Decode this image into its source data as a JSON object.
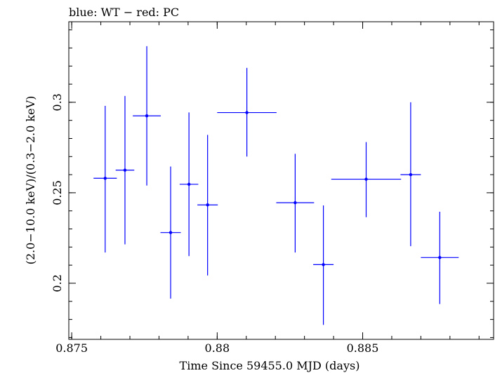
{
  "chart_data": {
    "type": "scatter",
    "title": "blue: WT − red: PC",
    "xlabel": "Time Since 59455.0 MJD (days)",
    "ylabel": "(2.0−10.0 keV)/(0.3−2.0 keV)",
    "xlim": [
      0.8749,
      0.8895
    ],
    "ylim": [
      0.169,
      0.3445
    ],
    "x_ticks": [
      {
        "value": 0.875,
        "label": "0.875"
      },
      {
        "value": 0.88,
        "label": "0.88"
      },
      {
        "value": 0.885,
        "label": "0.885"
      }
    ],
    "y_ticks": [
      {
        "value": 0.2,
        "label": "0.2"
      },
      {
        "value": 0.25,
        "label": "0.25"
      },
      {
        "value": 0.3,
        "label": "0.3"
      }
    ],
    "x_minor_step": 0.001,
    "y_minor_step": 0.01,
    "grid": false,
    "series": [
      {
        "name": "WT",
        "color": "#0000ff",
        "points": [
          {
            "x": 0.87615,
            "xerr": 0.0004,
            "y": 0.258,
            "yerr_low": 0.041,
            "yerr_high": 0.04
          },
          {
            "x": 0.87683,
            "xerr": 0.00032,
            "y": 0.2625,
            "yerr_low": 0.041,
            "yerr_high": 0.041
          },
          {
            "x": 0.87758,
            "xerr": 0.00048,
            "y": 0.2925,
            "yerr_low": 0.0385,
            "yerr_high": 0.0385
          },
          {
            "x": 0.8784,
            "xerr": 0.00035,
            "y": 0.228,
            "yerr_low": 0.0365,
            "yerr_high": 0.0365
          },
          {
            "x": 0.87903,
            "xerr": 0.00032,
            "y": 0.2547,
            "yerr_low": 0.0397,
            "yerr_high": 0.0397
          },
          {
            "x": 0.87967,
            "xerr": 0.00035,
            "y": 0.2433,
            "yerr_low": 0.039,
            "yerr_high": 0.0387
          },
          {
            "x": 0.88102,
            "xerr": 0.00102,
            "y": 0.2943,
            "yerr_low": 0.0243,
            "yerr_high": 0.0247
          },
          {
            "x": 0.88268,
            "xerr": 0.00065,
            "y": 0.2445,
            "yerr_low": 0.0275,
            "yerr_high": 0.027
          },
          {
            "x": 0.88365,
            "xerr": 0.00035,
            "y": 0.2103,
            "yerr_low": 0.0333,
            "yerr_high": 0.0327
          },
          {
            "x": 0.88512,
            "xerr": 0.0012,
            "y": 0.2575,
            "yerr_low": 0.021,
            "yerr_high": 0.0205
          },
          {
            "x": 0.88665,
            "xerr": 0.00035,
            "y": 0.26,
            "yerr_low": 0.0395,
            "yerr_high": 0.04
          },
          {
            "x": 0.88765,
            "xerr": 0.00065,
            "y": 0.2142,
            "yerr_low": 0.0257,
            "yerr_high": 0.0253
          }
        ]
      }
    ]
  }
}
